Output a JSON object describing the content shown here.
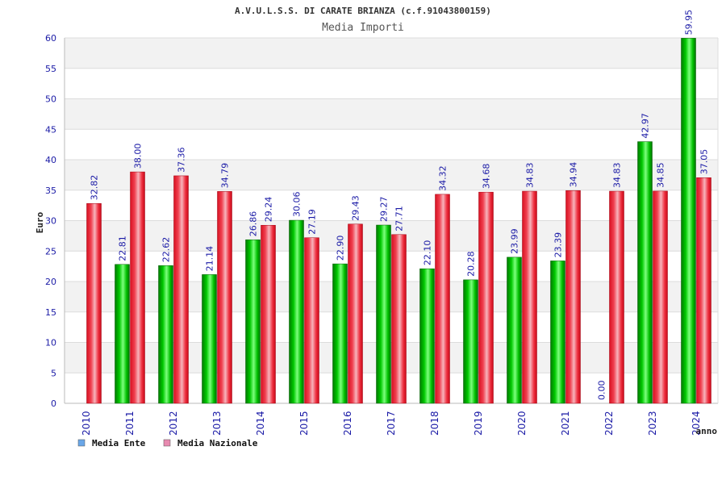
{
  "chart_data": {
    "type": "bar",
    "title": "A.V.U.L.S.S. DI CARATE BRIANZA (c.f.91043800159)",
    "subtitle": "Media Importi",
    "xlabel": "anno",
    "ylabel": "Euro",
    "ylim": [
      0,
      60
    ],
    "yticks": [
      0,
      5,
      10,
      15,
      20,
      25,
      30,
      35,
      40,
      45,
      50,
      55,
      60
    ],
    "grid": true,
    "legend_position": "bottom-left",
    "categories": [
      "2010",
      "2011",
      "2012",
      "2013",
      "2014",
      "2015",
      "2016",
      "2017",
      "2018",
      "2019",
      "2020",
      "2021",
      "2022",
      "2023",
      "2024"
    ],
    "series": [
      {
        "name": "Media Ente",
        "color": "#00b400",
        "legend_color": "#6aa7e8",
        "values": [
          null,
          22.81,
          22.62,
          21.14,
          26.86,
          30.06,
          22.9,
          29.27,
          22.1,
          20.28,
          23.99,
          23.39,
          0.0,
          42.97,
          59.95
        ],
        "labels": [
          "",
          "22.81",
          "22.62",
          "21.14",
          "26.86",
          "30.06",
          "22.90",
          "29.27",
          "22.10",
          "20.28",
          "23.99",
          "23.39",
          "0.00",
          "42.97",
          "59.95"
        ]
      },
      {
        "name": "Media Nazionale",
        "color": "#e8202a",
        "legend_color": "#e88ab0",
        "values": [
          32.82,
          38.0,
          37.36,
          34.79,
          29.24,
          27.19,
          29.43,
          27.71,
          34.32,
          34.68,
          34.83,
          34.94,
          34.83,
          34.85,
          37.05
        ],
        "labels": [
          "32.82",
          "38.00",
          "37.36",
          "34.79",
          "29.24",
          "27.19",
          "29.43",
          "27.71",
          "34.32",
          "34.68",
          "34.83",
          "34.94",
          "34.83",
          "34.85",
          "37.05"
        ]
      }
    ]
  }
}
